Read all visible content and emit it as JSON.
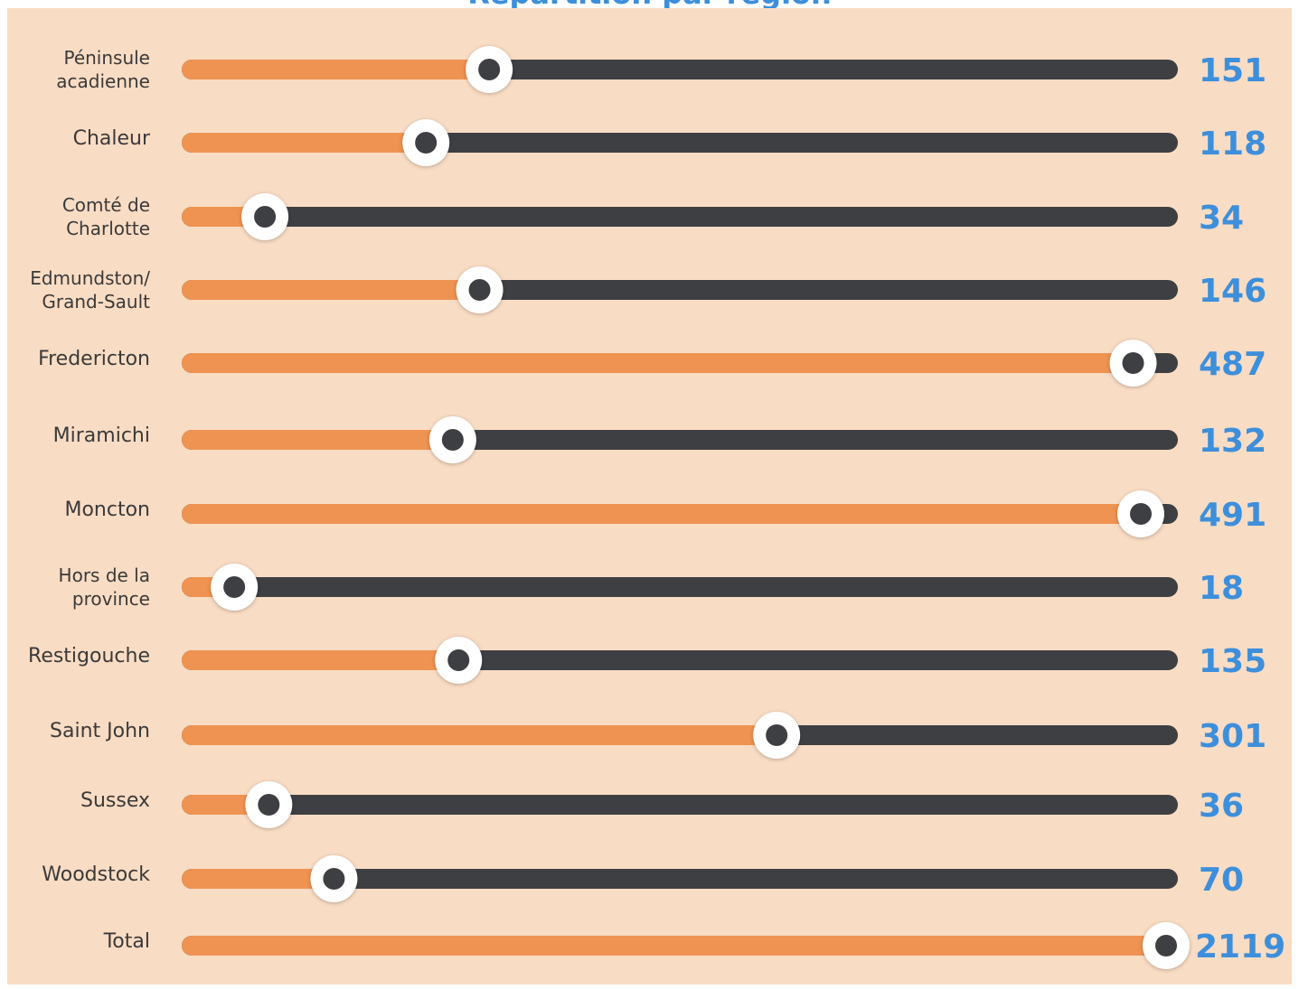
{
  "title_fragment": "Répartition par région",
  "colors": {
    "background": "#f9dcc4",
    "filled": "#ef9352",
    "track": "#3e3f43",
    "knob_ring": "#ffffff",
    "knob_center": "#3e3f43",
    "value_text": "#3d8fdb",
    "label_text": "#3a3a3a"
  },
  "chart_data": {
    "type": "bar",
    "style": "slider-track progress bars with circular knob marking the value; value label at right end",
    "scale_max": 491,
    "total_scale_max": 2119,
    "categories": [
      [
        "Péninsule",
        "acadienne"
      ],
      [
        "Chaleur"
      ],
      [
        "Comté de",
        "Charlotte"
      ],
      [
        "Edmundston/",
        "Grand-Sault"
      ],
      [
        "Fredericton"
      ],
      [
        "Miramichi"
      ],
      [
        "Moncton"
      ],
      [
        "Hors de la",
        "province"
      ],
      [
        "Restigouche"
      ],
      [
        "Saint John"
      ],
      [
        "Sussex"
      ],
      [
        "Woodstock"
      ],
      [
        "Total"
      ]
    ],
    "values": [
      151,
      118,
      34,
      146,
      487,
      132,
      491,
      18,
      135,
      301,
      36,
      70,
      2119
    ]
  }
}
